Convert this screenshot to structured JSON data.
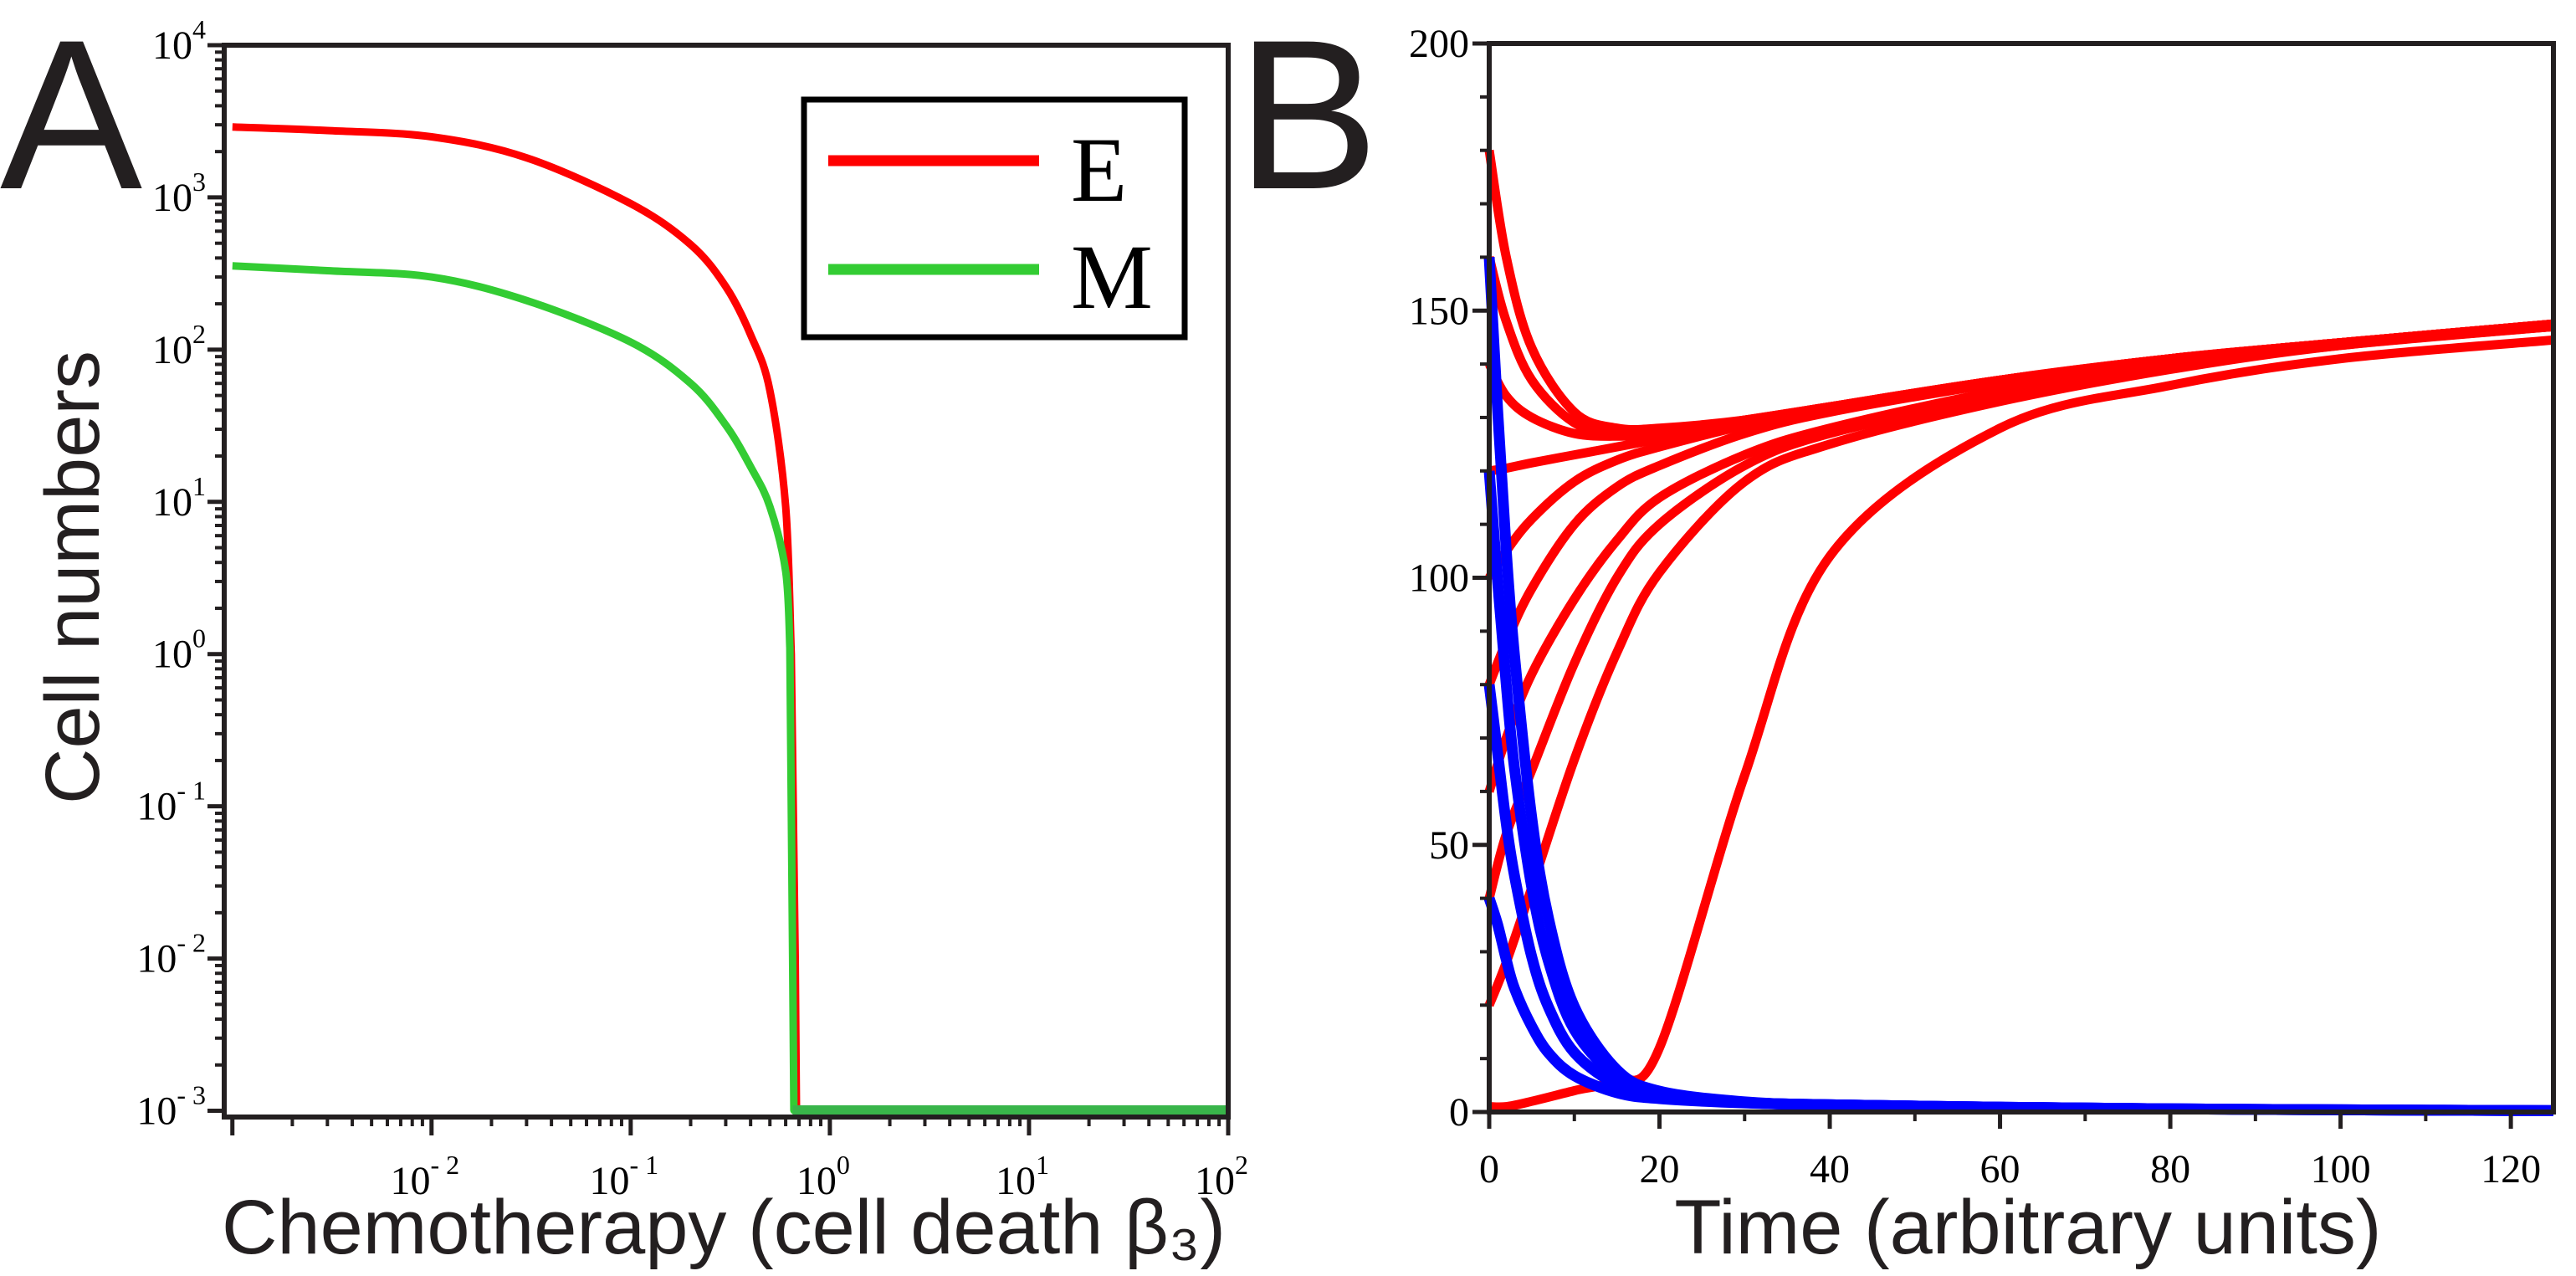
{
  "colors": {
    "E": "#ff0000",
    "M": "#33cc33",
    "M_floor": "#39b54a",
    "blue": "#0000ff",
    "axis": "#231f20"
  },
  "chart_data": [
    {
      "panel_label": "A",
      "type": "line",
      "xscale": "log",
      "yscale": "log",
      "xlabel": "Chemotherapy (cell death β₃)",
      "ylabel": "Cell numbers",
      "xlim": [
        0.00091,
        100
      ],
      "ylim": [
        0.00091,
        10000
      ],
      "xtick_exponents": [
        -2,
        -1,
        0,
        1,
        2
      ],
      "ytick_exponents": [
        4,
        3,
        2,
        1,
        0,
        -1,
        -2,
        -3
      ],
      "tick_base": "10",
      "grid": false,
      "legend": {
        "placement": "top-right",
        "entries": [
          "E",
          "M"
        ]
      },
      "series": [
        {
          "name": "E",
          "color": "#ff0000",
          "x": [
            0.001,
            0.003,
            0.01,
            0.03,
            0.1,
            0.2,
            0.3,
            0.4,
            0.5,
            0.6,
            0.64,
            0.67,
            0.68,
            1,
            10,
            100
          ],
          "y": [
            2900,
            2750,
            2500,
            1820,
            910,
            490,
            260,
            125,
            54,
            9.3,
            1.0,
            0.01,
            0.001,
            0.001,
            0.001,
            0.001
          ]
        },
        {
          "name": "M",
          "color": "#33cc33",
          "x": [
            0.001,
            0.003,
            0.01,
            0.03,
            0.1,
            0.2,
            0.3,
            0.4,
            0.5,
            0.6,
            0.63,
            0.65,
            0.66,
            1,
            10,
            100
          ],
          "y": [
            355,
            330,
            300,
            210,
            112,
            60,
            32,
            17,
            9.3,
            3.5,
            1.1,
            0.01,
            0.001,
            0.001,
            0.001,
            0.001
          ]
        }
      ]
    },
    {
      "panel_label": "B",
      "type": "line",
      "xlabel": "Time (arbitrary units)",
      "ylabel": "",
      "xlim": [
        0,
        125
      ],
      "ylim": [
        0,
        200
      ],
      "xticks": [
        0,
        20,
        40,
        60,
        80,
        100,
        120
      ],
      "yticks": [
        0,
        50,
        100,
        150,
        200
      ],
      "grid": false,
      "series_red_t": [
        0,
        2,
        5,
        10,
        15,
        20,
        30,
        40,
        60,
        80,
        100,
        125
      ],
      "series_red": [
        {
          "name": "E0=180",
          "y": [
            180,
            160,
            143,
            131,
            128,
            128,
            129.5,
            132,
            137,
            141,
            144,
            147.5
          ]
        },
        {
          "name": "E0=160",
          "y": [
            160,
            148,
            137,
            129,
            127,
            127,
            129.5,
            132,
            137,
            141,
            144,
            147.5
          ]
        },
        {
          "name": "E0=140",
          "y": [
            140,
            134,
            130,
            127,
            126.5,
            127,
            129.5,
            132,
            137,
            141,
            144,
            147.5
          ]
        },
        {
          "name": "E0=120",
          "y": [
            120,
            120.5,
            121.5,
            123,
            124.5,
            126,
            129,
            132,
            137,
            141,
            144,
            147.5
          ]
        },
        {
          "name": "E0=100",
          "y": [
            100,
            105,
            111,
            118,
            122,
            124.5,
            128.5,
            131.5,
            137,
            141,
            144,
            147.5
          ]
        },
        {
          "name": "E0=80",
          "y": [
            80,
            88,
            98,
            110,
            117,
            121,
            127,
            131,
            136.5,
            141,
            144,
            147.5
          ]
        },
        {
          "name": "E0=60",
          "y": [
            60,
            70,
            82,
            96,
            107,
            115,
            123,
            128,
            135,
            140,
            144,
            147
          ]
        },
        {
          "name": "E0=40",
          "y": [
            40,
            52,
            64,
            84,
            100,
            110,
            121,
            127,
            134,
            139.5,
            143.5,
            147
          ]
        },
        {
          "name": "E0=20",
          "y": [
            20,
            28,
            42,
            66,
            86,
            101,
            118,
            125,
            133,
            139,
            143.5,
            147
          ]
        },
        {
          "name": "E0=0",
          "y": [
            1,
            1,
            2,
            4,
            6,
            12,
            63,
            104,
            128,
            136,
            141,
            144.5
          ]
        }
      ],
      "series_blue_t": [
        0,
        1,
        2,
        3,
        5,
        7,
        10,
        15,
        20,
        30,
        40,
        60,
        80,
        100,
        125
      ],
      "series_blue": [
        {
          "name": "M0=160",
          "y": [
            160,
            131,
            105,
            85,
            55,
            36,
            19.7,
            7.9,
            3.9,
            1.9,
            1.35,
            0.9,
            0.6,
            0.4,
            0.25
          ]
        },
        {
          "name": "M0=120",
          "y": [
            120,
            99,
            80,
            64,
            42,
            28,
            15.4,
            6.5,
            3.4,
            1.8,
            1.35,
            0.9,
            0.6,
            0.4,
            0.25
          ]
        },
        {
          "name": "M0=80",
          "y": [
            80,
            67,
            54,
            44,
            29,
            19.5,
            11.1,
            5.1,
            2.9,
            1.75,
            1.35,
            0.9,
            0.6,
            0.4,
            0.25
          ]
        },
        {
          "name": "M0=40",
          "y": [
            40,
            35,
            28.5,
            23,
            16,
            11,
            6.8,
            3.6,
            2.5,
            1.7,
            1.35,
            0.9,
            0.6,
            0.4,
            0.25
          ]
        }
      ]
    }
  ]
}
